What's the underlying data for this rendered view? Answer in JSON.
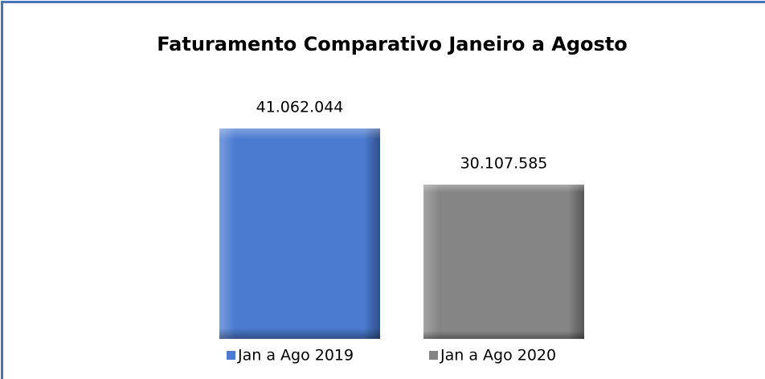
{
  "chart_data": {
    "type": "bar",
    "title": "Faturamento Comparativo Janeiro a Agosto",
    "series": [
      {
        "name": "Jan a Ago 2019",
        "color": "#4a7bd0",
        "values": [
          41062044
        ],
        "value_labels": [
          "41.062.044"
        ]
      },
      {
        "name": "Jan a Ago 2020",
        "color": "#858585",
        "values": [
          30107585
        ],
        "value_labels": [
          "30.107.585"
        ]
      }
    ],
    "legend": "bottom"
  }
}
